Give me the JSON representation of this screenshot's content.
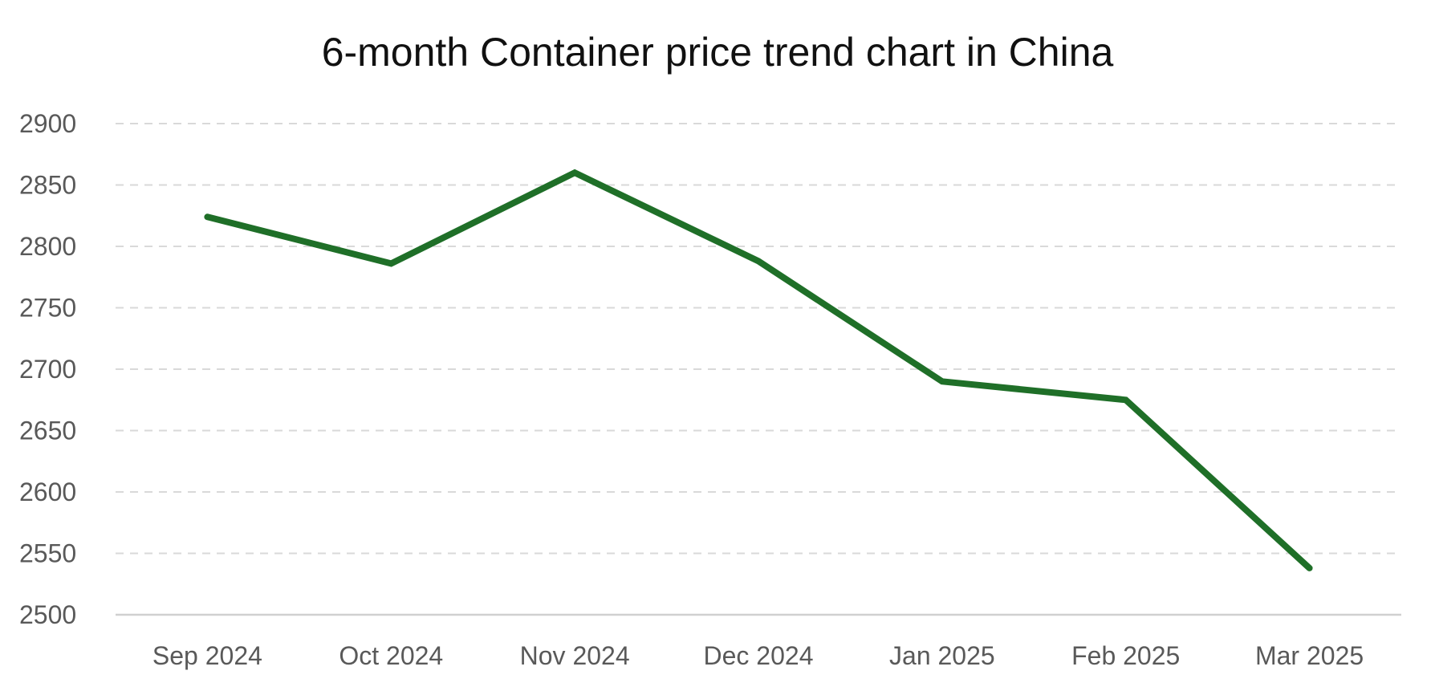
{
  "chart_data": {
    "type": "line",
    "title": "6-month Container price trend chart in China",
    "xlabel": "",
    "ylabel": "",
    "categories": [
      "Sep 2024",
      "Oct 2024",
      "Nov 2024",
      "Dec 2024",
      "Jan 2025",
      "Feb 2025",
      "Mar 2025"
    ],
    "series": [
      {
        "values": [
          2824,
          2786,
          2860,
          2788,
          2690,
          2675,
          2538
        ],
        "color": "#1f6f28"
      }
    ],
    "ylim": [
      2500,
      2900
    ],
    "yticks": [
      2500,
      2550,
      2600,
      2650,
      2700,
      2750,
      2800,
      2850,
      2900
    ],
    "grid": true,
    "grid_color": "#d9d9d9",
    "axis_color": "#d0d0d0",
    "legend": "none"
  }
}
